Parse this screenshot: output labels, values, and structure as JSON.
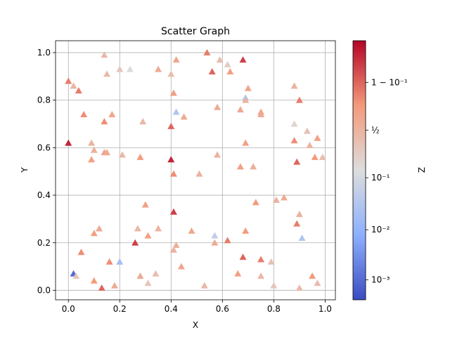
{
  "chart_data": {
    "type": "scatter",
    "title": "Scatter Graph",
    "xlabel": "X",
    "ylabel": "Y",
    "xlim": [
      -0.05,
      1.04
    ],
    "ylim": [
      -0.04,
      1.05
    ],
    "grid": true,
    "marker": "triangle-up",
    "colormap": "coolwarm",
    "x_ticks": [
      "0.0",
      "0.2",
      "0.4",
      "0.6",
      "0.8",
      "1.0"
    ],
    "y_ticks": [
      "0.0",
      "0.2",
      "0.4",
      "0.6",
      "0.8",
      "1.0"
    ],
    "colorbar": {
      "label": "Z",
      "scale": "logit",
      "range": [
        0.0004,
        0.984
      ],
      "ticks": [
        {
          "value": 0.9,
          "label": "1 − 10⁻¹"
        },
        {
          "value": 0.5,
          "label": "½"
        },
        {
          "value": 0.1,
          "label": "10⁻¹"
        },
        {
          "value": 0.01,
          "label": "10⁻²"
        },
        {
          "value": 0.001,
          "label": "10⁻³"
        }
      ]
    },
    "points": [
      [
        0.14,
        0.99,
        0.45
      ],
      [
        0.54,
        1.0,
        0.85
      ],
      [
        0.68,
        0.97,
        0.95
      ],
      [
        0.59,
        0.97,
        0.4
      ],
      [
        0.62,
        0.95,
        0.25
      ],
      [
        0.2,
        0.93,
        0.3
      ],
      [
        0.24,
        0.93,
        0.12
      ],
      [
        0.35,
        0.93,
        0.6
      ],
      [
        0.42,
        0.97,
        0.65
      ],
      [
        0.4,
        0.91,
        0.4
      ],
      [
        0.15,
        0.91,
        0.45
      ],
      [
        0.56,
        0.92,
        0.9
      ],
      [
        0.63,
        0.92,
        0.7
      ],
      [
        0.0,
        0.88,
        0.85
      ],
      [
        0.02,
        0.86,
        0.5
      ],
      [
        0.04,
        0.84,
        0.85
      ],
      [
        0.41,
        0.83,
        0.7
      ],
      [
        0.88,
        0.86,
        0.5
      ],
      [
        0.7,
        0.85,
        0.65
      ],
      [
        0.69,
        0.81,
        0.03
      ],
      [
        0.69,
        0.8,
        0.5
      ],
      [
        0.9,
        0.8,
        0.85
      ],
      [
        0.42,
        0.75,
        0.03
      ],
      [
        0.58,
        0.77,
        0.6
      ],
      [
        0.67,
        0.76,
        0.6
      ],
      [
        0.75,
        0.75,
        0.65
      ],
      [
        0.75,
        0.74,
        0.6
      ],
      [
        0.06,
        0.74,
        0.8
      ],
      [
        0.17,
        0.74,
        0.65
      ],
      [
        0.45,
        0.73,
        0.6
      ],
      [
        0.14,
        0.71,
        0.8
      ],
      [
        0.29,
        0.71,
        0.45
      ],
      [
        0.4,
        0.69,
        0.9
      ],
      [
        0.88,
        0.7,
        0.2
      ],
      [
        0.93,
        0.67,
        0.35
      ],
      [
        0.97,
        0.64,
        0.7
      ],
      [
        0.88,
        0.63,
        0.8
      ],
      [
        0.0,
        0.62,
        0.97
      ],
      [
        0.09,
        0.62,
        0.5
      ],
      [
        0.69,
        0.62,
        0.7
      ],
      [
        0.94,
        0.61,
        0.5
      ],
      [
        0.1,
        0.59,
        0.55
      ],
      [
        0.14,
        0.58,
        0.65
      ],
      [
        0.15,
        0.58,
        0.6
      ],
      [
        0.21,
        0.57,
        0.45
      ],
      [
        0.58,
        0.57,
        0.5
      ],
      [
        0.96,
        0.56,
        0.75
      ],
      [
        0.99,
        0.56,
        0.4
      ],
      [
        0.09,
        0.55,
        0.7
      ],
      [
        0.28,
        0.56,
        0.75
      ],
      [
        0.4,
        0.55,
        0.97
      ],
      [
        0.89,
        0.54,
        0.9
      ],
      [
        0.67,
        0.52,
        0.7
      ],
      [
        0.72,
        0.52,
        0.55
      ],
      [
        0.41,
        0.49,
        0.8
      ],
      [
        0.51,
        0.49,
        0.5
      ],
      [
        0.81,
        0.38,
        0.5
      ],
      [
        0.84,
        0.39,
        0.6
      ],
      [
        0.73,
        0.37,
        0.75
      ],
      [
        0.3,
        0.36,
        0.7
      ],
      [
        0.41,
        0.33,
        0.95
      ],
      [
        0.9,
        0.32,
        0.5
      ],
      [
        0.12,
        0.26,
        0.6
      ],
      [
        0.27,
        0.26,
        0.45
      ],
      [
        0.35,
        0.26,
        0.5
      ],
      [
        0.48,
        0.25,
        0.65
      ],
      [
        0.69,
        0.25,
        0.75
      ],
      [
        0.1,
        0.24,
        0.7
      ],
      [
        0.31,
        0.23,
        0.7
      ],
      [
        0.57,
        0.23,
        0.05
      ],
      [
        0.91,
        0.22,
        0.03
      ],
      [
        0.89,
        0.28,
        0.85
      ],
      [
        0.26,
        0.2,
        0.95
      ],
      [
        0.62,
        0.21,
        0.85
      ],
      [
        0.42,
        0.19,
        0.55
      ],
      [
        0.57,
        0.2,
        0.6
      ],
      [
        0.41,
        0.17,
        0.5
      ],
      [
        0.05,
        0.16,
        0.8
      ],
      [
        0.16,
        0.12,
        0.8
      ],
      [
        0.2,
        0.12,
        0.02
      ],
      [
        0.68,
        0.14,
        0.9
      ],
      [
        0.75,
        0.13,
        0.85
      ],
      [
        0.79,
        0.12,
        0.35
      ],
      [
        0.44,
        0.1,
        0.65
      ],
      [
        0.02,
        0.07,
        0.001
      ],
      [
        0.03,
        0.06,
        0.3
      ],
      [
        0.34,
        0.07,
        0.4
      ],
      [
        0.28,
        0.06,
        0.6
      ],
      [
        0.66,
        0.07,
        0.7
      ],
      [
        0.75,
        0.06,
        0.45
      ],
      [
        0.95,
        0.06,
        0.75
      ],
      [
        0.1,
        0.04,
        0.75
      ],
      [
        0.31,
        0.03,
        0.3
      ],
      [
        0.13,
        0.01,
        0.9
      ],
      [
        0.18,
        0.02,
        0.6
      ],
      [
        0.53,
        0.02,
        0.45
      ],
      [
        0.8,
        0.02,
        0.3
      ],
      [
        0.9,
        0.01,
        0.45
      ],
      [
        0.97,
        0.03,
        0.4
      ]
    ]
  }
}
